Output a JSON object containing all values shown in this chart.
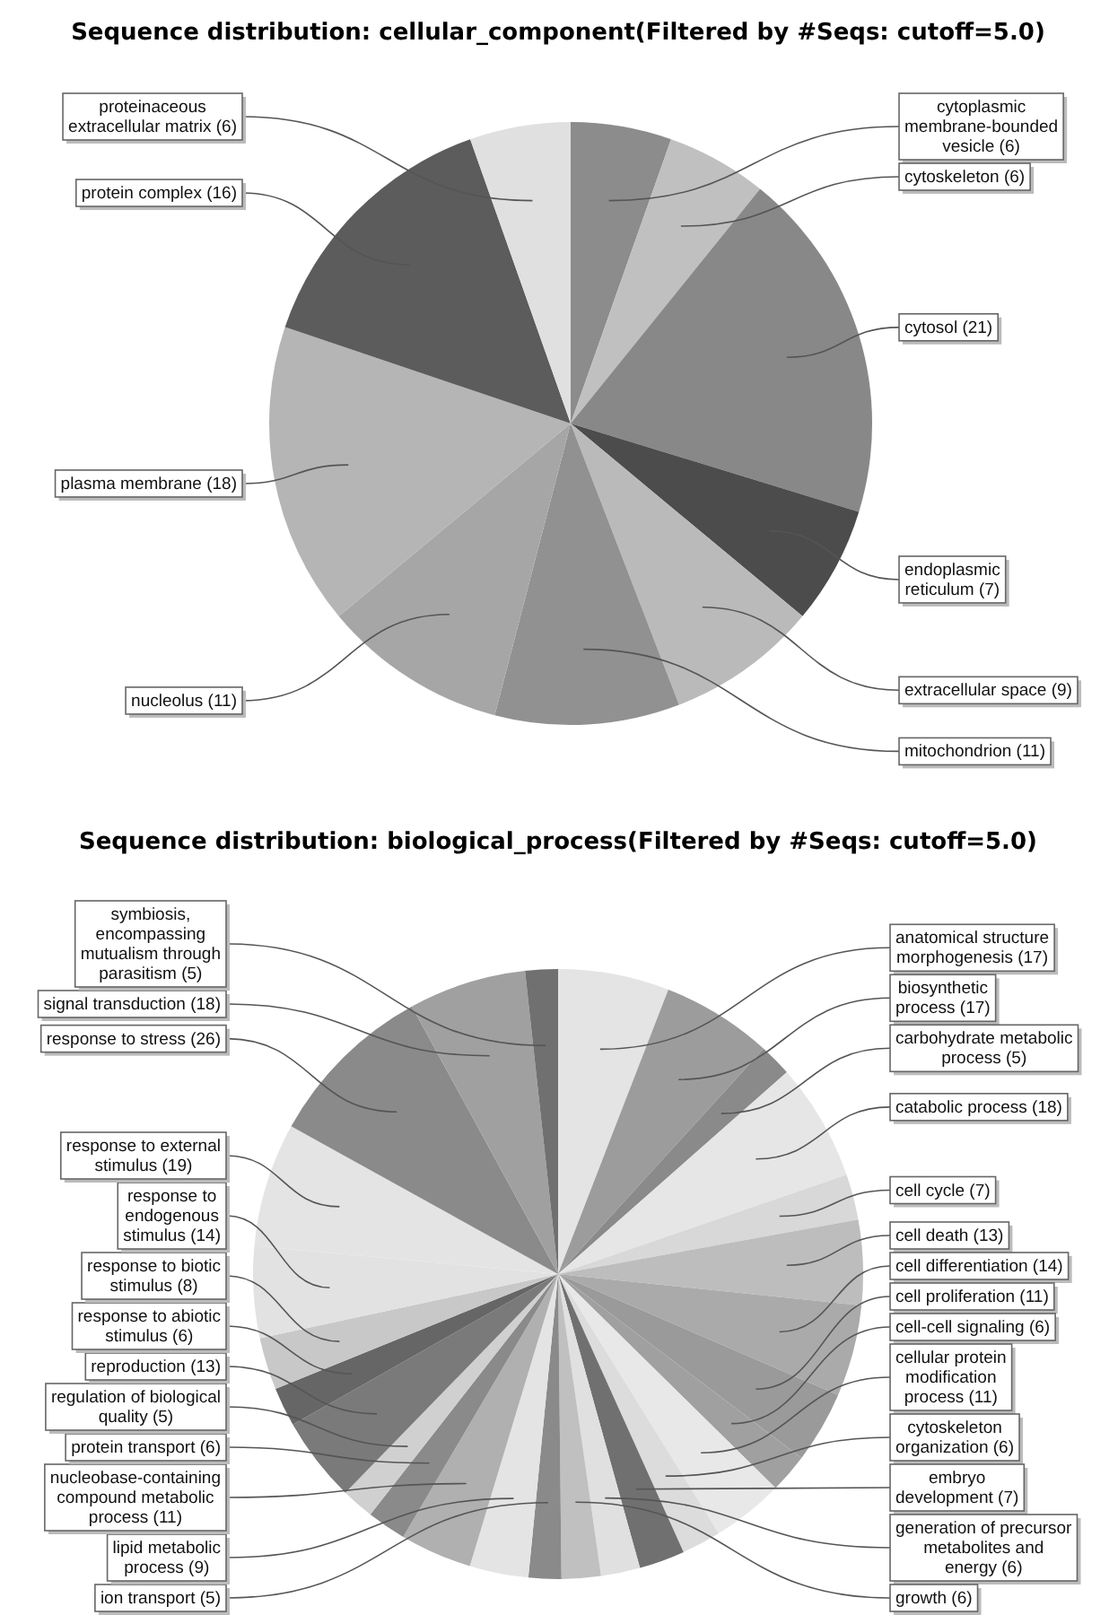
{
  "chart_data": [
    {
      "type": "pie",
      "title": "Sequence distribution: cellular_component(Filtered by #Seqs: cutoff=5.0)",
      "categories": [
        "cytoplasmic membrane-bounded vesicle",
        "cytoskeleton",
        "cytosol",
        "endoplasmic reticulum",
        "extracellular space",
        "mitochondrion",
        "nucleolus",
        "plasma membrane",
        "protein complex",
        "proteinaceous extracellular matrix"
      ],
      "values": [
        6,
        6,
        21,
        7,
        9,
        11,
        11,
        18,
        16,
        6
      ],
      "value_labels": [
        "(6)",
        "(6)",
        "(21)",
        "(7)",
        "(9)",
        "(11)",
        "(11)",
        "(18)",
        "(16)",
        "(6)"
      ],
      "colors": [
        "#8c8c8c",
        "#c0c0c0",
        "#888888",
        "#4c4c4c",
        "#bababa",
        "#919191",
        "#a6a6a6",
        "#b5b5b5",
        "#5c5c5c",
        "#e0e0e0"
      ]
    },
    {
      "type": "pie",
      "title": "Sequence distribution: biological_process(Filtered by #Seqs: cutoff=5.0)",
      "categories": [
        "anatomical structure morphogenesis",
        "biosynthetic process",
        "carbohydrate metabolic process",
        "catabolic process",
        "cell cycle",
        "cell death",
        "cell differentiation",
        "cell proliferation",
        "cell-cell signaling",
        "cellular protein modification process",
        "cytoskeleton organization",
        "embryo development",
        "generation of precursor metabolites and energy",
        "growth",
        "ion transport",
        "lipid metabolic process",
        "nucleobase-containing compound metabolic process",
        "protein transport",
        "regulation of biological quality",
        "reproduction",
        "response to abiotic stimulus",
        "response to biotic stimulus",
        "response to endogenous stimulus",
        "response to external stimulus",
        "response to stress",
        "signal transduction",
        "symbiosis, encompassing mutualism through parasitism"
      ],
      "values": [
        17,
        17,
        5,
        18,
        7,
        13,
        14,
        11,
        6,
        11,
        6,
        7,
        6,
        6,
        5,
        9,
        11,
        6,
        5,
        13,
        6,
        8,
        14,
        19,
        26,
        18,
        5
      ],
      "value_labels": [
        "(17)",
        "(17)",
        "(5)",
        "(18)",
        "(7)",
        "(13)",
        "(14)",
        "(11)",
        "(6)",
        "(11)",
        "(6)",
        "(7)",
        "(6)",
        "(6)",
        "(5)",
        "(9)",
        "(11)",
        "(6)",
        "(5)",
        "(13)",
        "(6)",
        "(8)",
        "(14)",
        "(19)",
        "(26)",
        "(18)",
        "(5)"
      ],
      "colors": [
        "#e4e4e4",
        "#9c9c9c",
        "#8a8a8a",
        "#e6e6e6",
        "#d8d8d8",
        "#bdbdbd",
        "#aaaaaa",
        "#9a9a9a",
        "#a0a0a0",
        "#e8e8e8",
        "#dcdcdc",
        "#707070",
        "#e0e0e0",
        "#c0c0c0",
        "#8a8a8a",
        "#e4e4e4",
        "#b0b0b0",
        "#8a8a8a",
        "#d0d0d0",
        "#7a7a7a",
        "#666666",
        "#c8c8c8",
        "#e2e2e2",
        "#e4e4e4",
        "#8a8a8a",
        "#a0a0a0",
        "#707070"
      ]
    }
  ]
}
